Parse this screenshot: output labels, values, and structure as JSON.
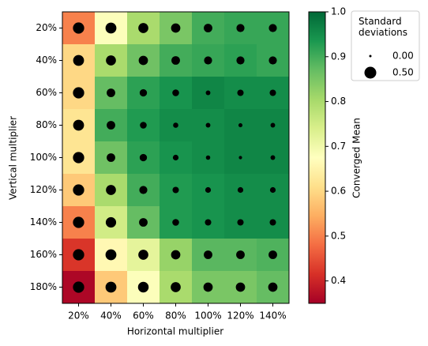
{
  "chart_data": {
    "type": "heatmap",
    "x_label": "Horizontal multiplier",
    "y_label": "Vertical multiplier",
    "x_categories": [
      "20%",
      "40%",
      "60%",
      "80%",
      "100%",
      "120%",
      "140%"
    ],
    "y_categories": [
      "20%",
      "40%",
      "60%",
      "80%",
      "100%",
      "120%",
      "140%",
      "160%",
      "180%"
    ],
    "colormap": "RdYlGn",
    "values": [
      [
        0.5,
        0.68,
        0.8,
        0.85,
        0.9,
        0.91,
        0.91
      ],
      [
        0.6,
        0.8,
        0.86,
        0.9,
        0.91,
        0.92,
        0.91
      ],
      [
        0.6,
        0.87,
        0.92,
        0.94,
        0.96,
        0.95,
        0.95
      ],
      [
        0.62,
        0.9,
        0.93,
        0.95,
        0.95,
        0.96,
        0.96
      ],
      [
        0.62,
        0.86,
        0.92,
        0.94,
        0.95,
        0.96,
        0.96
      ],
      [
        0.58,
        0.8,
        0.9,
        0.93,
        0.94,
        0.95,
        0.95
      ],
      [
        0.5,
        0.75,
        0.87,
        0.93,
        0.94,
        0.95,
        0.95
      ],
      [
        0.42,
        0.66,
        0.72,
        0.82,
        0.88,
        0.88,
        0.89
      ],
      [
        0.36,
        0.58,
        0.68,
        0.8,
        0.85,
        0.85,
        0.87
      ]
    ],
    "sizes": [
      [
        0.45,
        0.42,
        0.35,
        0.3,
        0.25,
        0.22,
        0.22
      ],
      [
        0.42,
        0.35,
        0.3,
        0.25,
        0.22,
        0.22,
        0.22
      ],
      [
        0.45,
        0.25,
        0.18,
        0.15,
        0.06,
        0.13,
        0.13
      ],
      [
        0.42,
        0.25,
        0.15,
        0.08,
        0.06,
        0.04,
        0.06
      ],
      [
        0.45,
        0.25,
        0.18,
        0.1,
        0.05,
        0.02,
        0.06
      ],
      [
        0.45,
        0.35,
        0.22,
        0.13,
        0.1,
        0.1,
        0.1
      ],
      [
        0.45,
        0.38,
        0.25,
        0.15,
        0.13,
        0.13,
        0.13
      ],
      [
        0.45,
        0.42,
        0.35,
        0.3,
        0.25,
        0.25,
        0.25
      ],
      [
        0.45,
        0.42,
        0.4,
        0.35,
        0.3,
        0.3,
        0.3
      ]
    ],
    "colorbar_label": "Converged Mean",
    "clim": [
      0.35,
      1.0
    ],
    "cticks": [
      0.4,
      0.5,
      0.6,
      0.7,
      0.8,
      0.9,
      {
        "value": 1.0,
        "label": "1.0"
      }
    ],
    "size_legend_title": "Standard deviations",
    "size_legend": [
      {
        "value": 0,
        "label": "0.00"
      },
      {
        "value": 0.5,
        "label": "0.50"
      }
    ]
  }
}
